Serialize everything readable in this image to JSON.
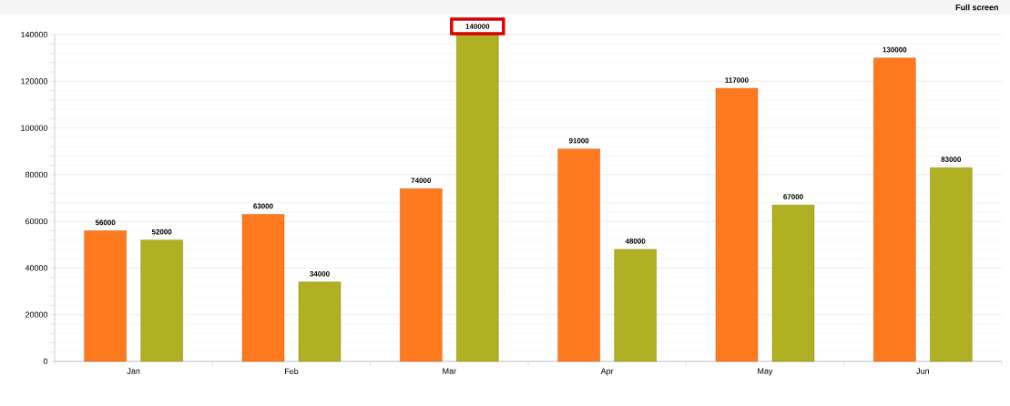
{
  "chart_data": {
    "type": "bar",
    "categories": [
      "Jan",
      "Feb",
      "Mar",
      "Apr",
      "May",
      "Jun"
    ],
    "series": [
      {
        "color": "#ff7a1f",
        "values": [
          56000,
          63000,
          74000,
          91000,
          117000,
          130000
        ]
      },
      {
        "color": "#b0b022",
        "values": [
          52000,
          34000,
          140000,
          48000,
          67000,
          83000
        ]
      }
    ],
    "ylim": [
      0,
      140000
    ],
    "yticks": [
      0,
      20000,
      40000,
      60000,
      80000,
      100000,
      120000,
      140000
    ],
    "grid": "y",
    "data_labels": true,
    "annotations": [
      "Full screen"
    ]
  }
}
